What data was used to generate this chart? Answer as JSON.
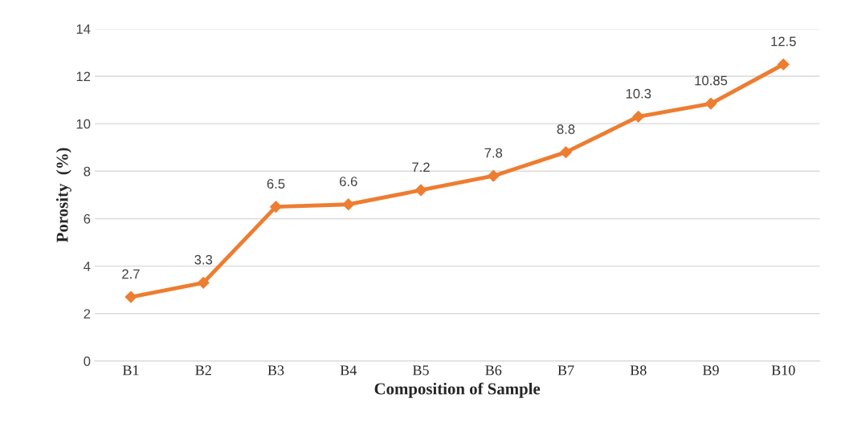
{
  "chart_data": {
    "type": "line",
    "xlabel": "Composition of Sample",
    "ylabel": "Porosity  (%)",
    "categories": [
      "B1",
      "B2",
      "B3",
      "B4",
      "B5",
      "B6",
      "B7",
      "B8",
      "B9",
      "B10"
    ],
    "series": [
      {
        "color": "#ed7d31",
        "values": [
          2.7,
          3.3,
          6.5,
          6.6,
          7.2,
          7.8,
          8.8,
          10.3,
          10.85,
          12.5
        ]
      }
    ],
    "ylim": [
      0,
      14
    ],
    "yticks": [
      0,
      2,
      4,
      6,
      8,
      10,
      12,
      14
    ],
    "grid": "y",
    "marker": "diamond",
    "line_style": "solid",
    "data_labels": true,
    "legend": false
  }
}
